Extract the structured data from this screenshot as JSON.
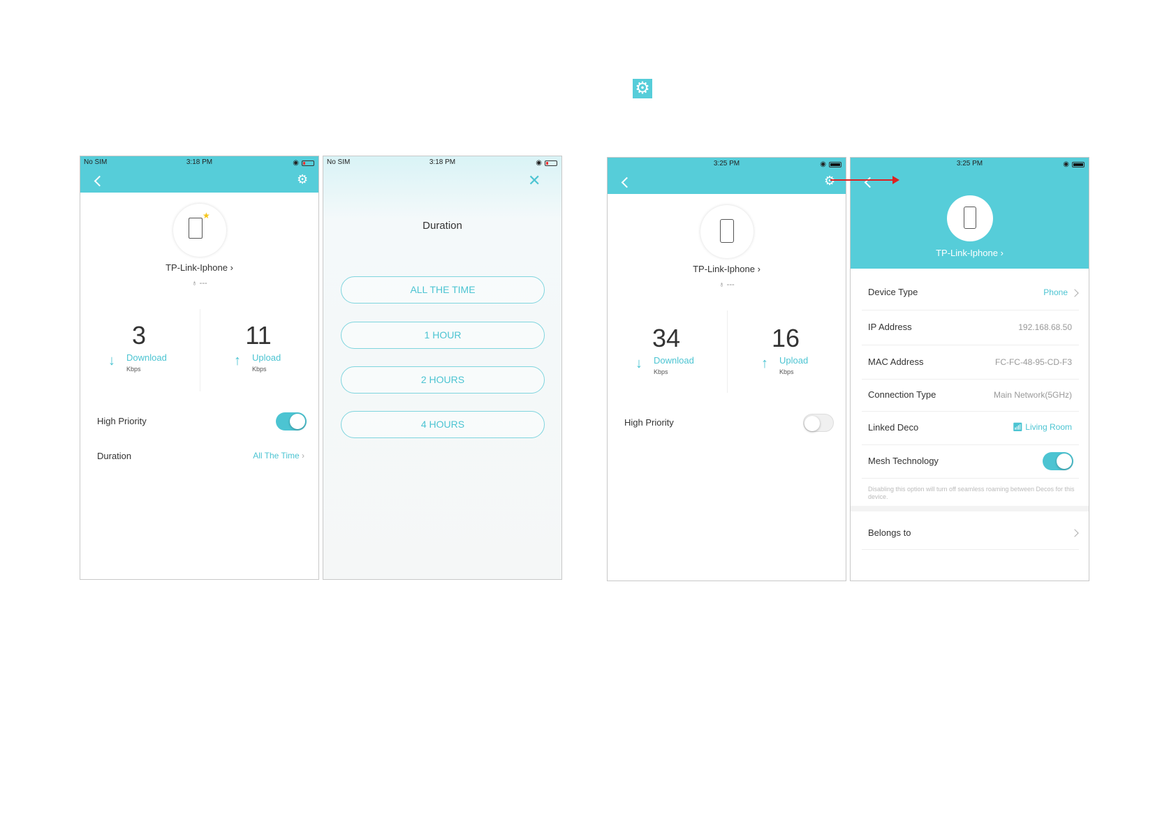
{
  "top_icon": "gear-icon",
  "accent": "#56cdd9",
  "screen1": {
    "carrier": "No SIM",
    "time": "3:18 PM",
    "device_name": "TP-Link-Iphone",
    "owner": "---",
    "download_value": "3",
    "download_label": "Download",
    "download_unit": "Kbps",
    "upload_value": "11",
    "upload_label": "Upload",
    "upload_unit": "Kbps",
    "high_priority_label": "High Priority",
    "high_priority_on": true,
    "duration_label": "Duration",
    "duration_value": "All The Time"
  },
  "screen2": {
    "carrier": "No SIM",
    "time": "3:18 PM",
    "title": "Duration",
    "options": [
      "ALL THE TIME",
      "1 HOUR",
      "2 HOURS",
      "4 HOURS"
    ]
  },
  "screen3": {
    "time": "3:25 PM",
    "device_name": "TP-Link-Iphone",
    "owner": "---",
    "download_value": "34",
    "download_label": "Download",
    "download_unit": "Kbps",
    "upload_value": "16",
    "upload_label": "Upload",
    "upload_unit": "Kbps",
    "high_priority_label": "High Priority",
    "high_priority_on": false
  },
  "screen4": {
    "time": "3:25 PM",
    "device_name": "TP-Link-Iphone",
    "rows": [
      {
        "label": "Device Type",
        "value": "Phone"
      },
      {
        "label": "IP Address",
        "value": "192.168.68.50"
      },
      {
        "label": "MAC Address",
        "value": "FC-FC-48-95-CD-F3"
      },
      {
        "label": "Connection Type",
        "value": "Main Network(5GHz)"
      },
      {
        "label": "Linked Deco",
        "value": "Living Room"
      },
      {
        "label": "Mesh Technology",
        "value": ""
      }
    ],
    "mesh_on": true,
    "mesh_note": "Disabling this option will turn off seamless roaming between Decos for this device.",
    "belongs_label": "Belongs to"
  }
}
